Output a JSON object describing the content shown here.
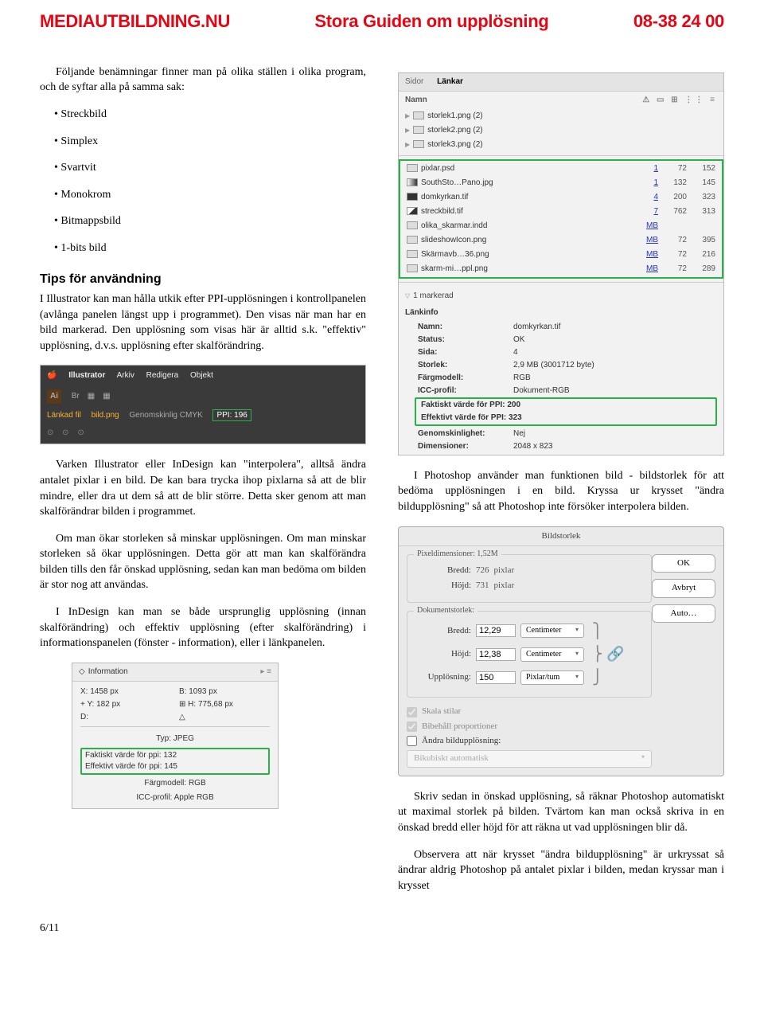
{
  "header": {
    "left": "MEDIAUTBILDNING.NU",
    "center": "Stora Guiden om upplösning",
    "right": "08-38 24 00"
  },
  "leftcol": {
    "intro": "Följande benämningar finner man på olika ställen i olika program, och de syftar alla på samma sak:",
    "bullets": [
      "Streckbild",
      "Simplex",
      "Svartvit",
      "Monokrom",
      "Bitmappsbild",
      "1-bits bild"
    ],
    "tips_heading": "Tips för användning",
    "tips_body": "I Illustrator kan man hålla utkik efter PPI-upplösningen i kontrollpanelen (avlånga panelen längst upp i programmet). Den visas när man har en bild markerad. Den upplösning som visas här är alltid s.k. \"effektiv\" upplösning, d.v.s. upplösning efter skalförändring.",
    "illus": {
      "menu": [
        "Illustrator",
        "Arkiv",
        "Redigera",
        "Objekt"
      ],
      "badge": "Ai",
      "linked": "Länkad fil",
      "file": "bild.png",
      "mode": "Genomskinlig CMYK",
      "ppi": "PPI: 196"
    },
    "p2": "Varken Illustrator eller InDesign kan \"interpolera\", alltså ändra antalet pixlar i en bild. De kan bara trycka ihop pixlarna så att de blir mindre, eller dra ut dem så att de blir större. Detta sker genom att man skalförändrar bilden i programmet.",
    "p3": "Om man ökar storleken så minskar upplösningen. Om man minskar storleken så ökar upplösningen. Detta gör att man kan skalförändra bilden tills den får önskad upplösning, sedan kan man bedöma om bilden är stor nog att användas.",
    "p4": "I InDesign kan man se både ursprunglig upplösning (innan skalförändring) och effektiv upplösning (efter skalförändring) i informationspanelen (fönster - information), eller i länkpanelen.",
    "info": {
      "title": "Information",
      "x": "X: 1458 px",
      "b": "B: 1093 px",
      "y": "Y: 182 px",
      "h": "H: 775,68 px",
      "d": "D:",
      "typ": "Typ: JPEG",
      "l1": "Faktiskt värde för ppi: 132",
      "l2": "Effektivt värde för ppi: 145",
      "cm": "Färgmodell: RGB",
      "icc": "ICC-profil: Apple RGB"
    }
  },
  "rightcol": {
    "links": {
      "tab_sidor": "Sidor",
      "tab_lankar": "Länkar",
      "name_hdr": "Namn",
      "rows_top": [
        {
          "name": "storlek1.png (2)"
        },
        {
          "name": "storlek2.png (2)"
        },
        {
          "name": "storlek3.png (2)"
        }
      ],
      "rows_mid": [
        {
          "name": "pixlar.psd",
          "c1": "1",
          "c2a": "72",
          "c2b": "152"
        },
        {
          "name": "SouthSto…Pano.jpg",
          "c1": "1",
          "c2a": "132",
          "c2b": "145"
        },
        {
          "name": "domkyrkan.tif",
          "c1": "4",
          "c2a": "200",
          "c2b": "323"
        },
        {
          "name": "streckbild.tif",
          "c1": "7",
          "c2a": "762",
          "c2b": "313"
        },
        {
          "name": "olika_skarmar.indd",
          "c1": "MB",
          "c2a": "",
          "c2b": ""
        },
        {
          "name": "slideshowIcon.png",
          "c1": "MB",
          "c2a": "72",
          "c2b": "395"
        },
        {
          "name": "Skärmavb…36.png",
          "c1": "MB",
          "c2a": "72",
          "c2b": "216"
        },
        {
          "name": "skarm-mi…ppl.png",
          "c1": "MB",
          "c2a": "72",
          "c2b": "289"
        }
      ],
      "marked": "1 markerad",
      "linkinfo_hdr": "Länkinfo",
      "info": {
        "Namn": "domkyrkan.tif",
        "Status": "OK",
        "Sida": "4",
        "Storlek": "2,9 MB (3001712 byte)",
        "Färgmodell": "RGB",
        "ICC-profil": "Dokument-RGB"
      },
      "hl1": "Faktiskt värde för PPI: 200",
      "hl2": "Effektivt värde för PPI: 323",
      "info2": {
        "Genomskinlighet": "Nej",
        "Dimensioner": "2048 x 823"
      }
    },
    "p1": "I Photoshop använder man funktionen bild - bildstorlek för att bedöma upplösningen i en bild. Kryssa ur krysset \"ändra bildupplösning\" så att Photoshop inte försöker interpolera bilden.",
    "dialog": {
      "title": "Bildstorlek",
      "pixdim_lbl": "Pixeldimensioner: 1,52M",
      "bredd": "Bredd:",
      "bredd_v": "726",
      "bredd_u": "pixlar",
      "hojd": "Höjd:",
      "hojd_v": "731",
      "hojd_u": "pixlar",
      "ok": "OK",
      "avbryt": "Avbryt",
      "auto": "Auto…",
      "doc_legend": "Dokumentstorlek:",
      "d_bredd": "Bredd:",
      "d_bredd_v": "12,29",
      "d_bredd_u": "Centimeter",
      "d_hojd": "Höjd:",
      "d_hojd_v": "12,38",
      "d_hojd_u": "Centimeter",
      "uppl": "Upplösning:",
      "uppl_v": "150",
      "uppl_u": "Pixlar/tum",
      "chk1": "Skala stilar",
      "chk2": "Bibehåll proportioner",
      "chk3": "Ändra bildupplösning:",
      "dd": "Bikubiskt automatisk"
    },
    "p2": "Skriv sedan in önskad upplösning, så räknar Photoshop automatiskt ut maximal storlek på bilden. Tvärtom kan man också skriva in en önskad bredd eller höjd för att räkna ut vad upplösningen blir då.",
    "p3": "Observera att när krysset \"ändra bildupplösning\" är urkryssat så ändrar aldrig Photoshop på antalet pixlar i bilden, medan kryssar man i krysset"
  },
  "footer": "6/11"
}
